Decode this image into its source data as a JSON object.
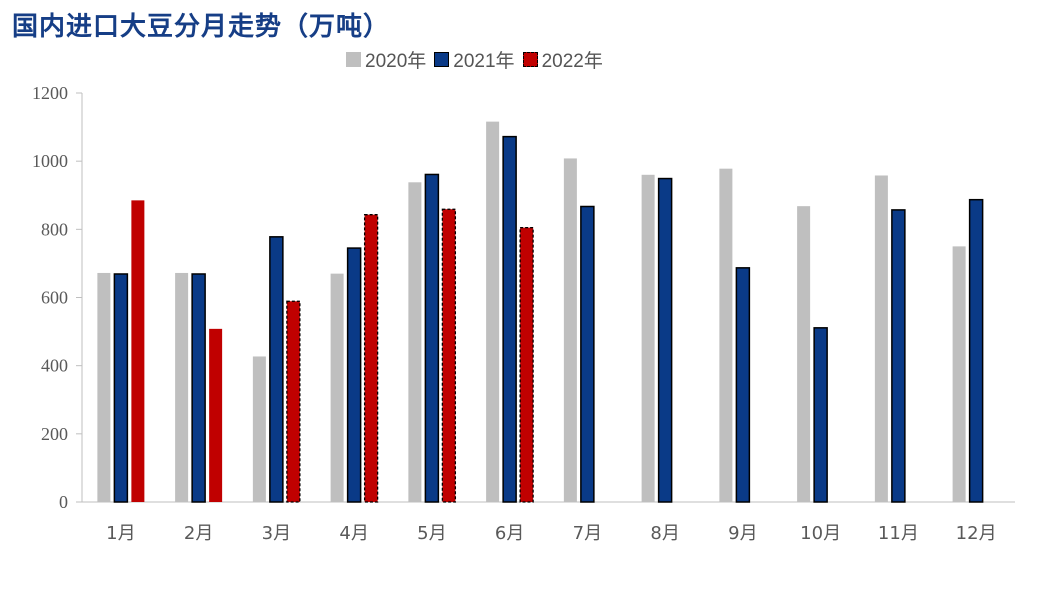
{
  "chart_data": {
    "type": "bar",
    "title": "国内进口大豆分月走势（万吨）",
    "categories": [
      "1月",
      "2月",
      "3月",
      "4月",
      "5月",
      "6月",
      "7月",
      "8月",
      "9月",
      "10月",
      "11月",
      "12月"
    ],
    "series": [
      {
        "name": "2020年",
        "color": "#bfbfbf",
        "values": [
          672,
          672,
          427,
          670,
          938,
          1116,
          1008,
          960,
          978,
          868,
          958,
          750
        ]
      },
      {
        "name": "2021年",
        "color": "#0a3a87",
        "values": [
          669,
          669,
          778,
          745,
          961,
          1072,
          867,
          949,
          687,
          511,
          857,
          887
        ]
      },
      {
        "name": "2022年",
        "color": "#c00000",
        "values": [
          885,
          508,
          589,
          843,
          859,
          805,
          null,
          null,
          null,
          null,
          null,
          null
        ]
      }
    ],
    "ylim": [
      0,
      1200
    ],
    "yticks": [
      0,
      200,
      400,
      600,
      800,
      1000,
      1200
    ],
    "grid": false,
    "legend_position": "top"
  }
}
